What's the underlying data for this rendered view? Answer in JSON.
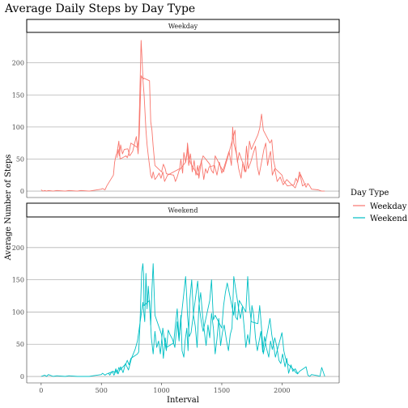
{
  "chart_data": {
    "type": "line",
    "title": "Average Daily Steps by Day Type",
    "xlabel": "Interval",
    "ylabel": "Average Number of Steps",
    "xlim": [
      -120,
      2475
    ],
    "ylim": [
      -10,
      245
    ],
    "x_ticks": [
      0,
      500,
      1000,
      1500,
      2000
    ],
    "y_ticks": [
      0,
      50,
      100,
      150,
      200
    ],
    "grid": true,
    "legend": {
      "title": "Day Type",
      "position": "right",
      "entries": [
        {
          "label": "Weekday",
          "color": "#F8766D"
        },
        {
          "label": "Weekend",
          "color": "#00BFC4"
        }
      ]
    },
    "panels": [
      {
        "strip": "Weekday",
        "series_name": "Weekday",
        "color": "#F8766D",
        "x": [
          0,
          15,
          30,
          45,
          60,
          100,
          130,
          200,
          230,
          300,
          330,
          400,
          430,
          500,
          510,
          530,
          545,
          600,
          610,
          620,
          630,
          645,
          655,
          705,
          715,
          730,
          745,
          800,
          810,
          820,
          830,
          835,
          845,
          850,
          855,
          900,
          910,
          920,
          930,
          945,
          1000,
          1015,
          1030,
          1040,
          1100,
          1115,
          1130,
          1145,
          1200,
          1210,
          1215,
          1230,
          1245,
          1300,
          1315,
          1330,
          1345,
          1400,
          1415,
          1430,
          1445,
          1500,
          1515,
          1530,
          1545,
          1600,
          1610,
          1615,
          1630,
          1645,
          1700,
          1715,
          1730,
          1745,
          1800,
          1815,
          1830,
          1845,
          1900,
          1915,
          1930,
          1945,
          2000,
          2015,
          2030,
          2045,
          2100,
          2115,
          2130,
          2145,
          2200,
          2215,
          2230,
          2245,
          2300,
          2315,
          2330,
          2355
        ],
        "y": [
          2,
          0,
          1,
          0,
          1,
          0,
          1,
          0,
          1,
          0,
          1,
          0,
          1,
          3,
          4,
          2,
          8,
          25,
          45,
          55,
          60,
          78,
          50,
          55,
          52,
          60,
          75,
          68,
          80,
          155,
          235,
          215,
          178,
          175,
          176,
          172,
          108,
          95,
          70,
          40,
          30,
          42,
          35,
          27,
          25,
          15,
          22,
          32,
          45,
          55,
          75,
          50,
          42,
          25,
          38,
          45,
          55,
          42,
          32,
          28,
          55,
          35,
          30,
          40,
          50,
          88,
          95,
          72,
          45,
          60,
          30,
          48,
          78,
          65,
          88,
          98,
          120,
          95,
          75,
          80,
          48,
          35,
          25,
          15,
          12,
          8,
          10,
          20,
          14,
          30,
          6,
          12,
          8,
          3,
          2,
          1,
          0,
          0
        ],
        "overlay": [
          [
            630,
            52
          ],
          [
            640,
            65
          ],
          [
            650,
            55
          ],
          [
            660,
            72
          ],
          [
            675,
            58
          ],
          [
            690,
            65
          ],
          [
            720,
            66
          ],
          [
            735,
            55
          ],
          [
            760,
            62
          ],
          [
            770,
            70
          ],
          [
            790,
            85
          ],
          [
            805,
            58
          ],
          [
            815,
            90
          ],
          [
            830,
            180
          ],
          [
            845,
            175
          ],
          [
            855,
            150
          ],
          [
            870,
            95
          ],
          [
            880,
            72
          ],
          [
            890,
            55
          ],
          [
            900,
            40
          ],
          [
            910,
            25
          ],
          [
            920,
            20
          ],
          [
            930,
            30
          ],
          [
            945,
            18
          ],
          [
            960,
            22
          ],
          [
            980,
            28
          ],
          [
            995,
            20
          ],
          [
            1010,
            30
          ],
          [
            1025,
            15
          ],
          [
            1050,
            25
          ],
          [
            1150,
            35
          ],
          [
            1160,
            50
          ],
          [
            1175,
            28
          ],
          [
            1185,
            60
          ],
          [
            1200,
            45
          ],
          [
            1215,
            68
          ],
          [
            1225,
            40
          ],
          [
            1240,
            58
          ],
          [
            1255,
            30
          ],
          [
            1270,
            48
          ],
          [
            1285,
            25
          ],
          [
            1300,
            40
          ],
          [
            1310,
            20
          ],
          [
            1330,
            48
          ],
          [
            1350,
            18
          ],
          [
            1365,
            35
          ],
          [
            1380,
            28
          ],
          [
            1395,
            38
          ],
          [
            1440,
            40
          ],
          [
            1460,
            25
          ],
          [
            1480,
            45
          ],
          [
            1500,
            28
          ],
          [
            1520,
            38
          ],
          [
            1560,
            62
          ],
          [
            1580,
            40
          ],
          [
            1590,
            100
          ],
          [
            1600,
            75
          ],
          [
            1625,
            55
          ],
          [
            1640,
            35
          ],
          [
            1660,
            20
          ],
          [
            1675,
            45
          ],
          [
            1690,
            30
          ],
          [
            1705,
            70
          ],
          [
            1720,
            35
          ],
          [
            1740,
            45
          ],
          [
            1760,
            58
          ],
          [
            1780,
            70
          ],
          [
            1795,
            38
          ],
          [
            1810,
            25
          ],
          [
            1850,
            65
          ],
          [
            1865,
            75
          ],
          [
            1880,
            40
          ],
          [
            1895,
            55
          ],
          [
            1905,
            62
          ],
          [
            1920,
            25
          ],
          [
            1940,
            35
          ],
          [
            1960,
            15
          ],
          [
            1985,
            22
          ],
          [
            2010,
            10
          ],
          [
            2040,
            18
          ],
          [
            2070,
            12
          ],
          [
            2110,
            5
          ],
          [
            2150,
            26
          ],
          [
            2170,
            8
          ],
          [
            2200,
            12
          ]
        ]
      },
      {
        "strip": "Weekend",
        "series_name": "Weekend",
        "color": "#00BFC4",
        "x": [
          0,
          15,
          30,
          45,
          60,
          100,
          130,
          200,
          230,
          300,
          330,
          400,
          430,
          500,
          510,
          530,
          545,
          600,
          610,
          620,
          630,
          645,
          655,
          705,
          715,
          730,
          745,
          800,
          810,
          820,
          830,
          835,
          845,
          850,
          855,
          900,
          910,
          920,
          930,
          945,
          1000,
          1015,
          1030,
          1040,
          1100,
          1115,
          1130,
          1145,
          1200,
          1210,
          1215,
          1230,
          1245,
          1300,
          1315,
          1330,
          1345,
          1400,
          1415,
          1430,
          1445,
          1500,
          1515,
          1530,
          1545,
          1600,
          1610,
          1615,
          1630,
          1645,
          1700,
          1715,
          1730,
          1745,
          1800,
          1815,
          1830,
          1845,
          1900,
          1915,
          1930,
          1945,
          2000,
          2015,
          2030,
          2045,
          2100,
          2115,
          2130,
          2145,
          2200,
          2215,
          2230,
          2245,
          2300,
          2315,
          2330,
          2355
        ],
        "y": [
          0,
          1,
          2,
          0,
          3,
          0,
          1,
          0,
          1,
          0,
          0,
          0,
          1,
          3,
          5,
          2,
          4,
          8,
          6,
          12,
          5,
          14,
          10,
          20,
          25,
          18,
          28,
          35,
          38,
          78,
          135,
          162,
          175,
          160,
          110,
          118,
          80,
          135,
          175,
          95,
          65,
          28,
          60,
          45,
          52,
          80,
          105,
          60,
          155,
          120,
          95,
          62,
          68,
          148,
          105,
          85,
          70,
          118,
          150,
          88,
          95,
          75,
          110,
          130,
          145,
          95,
          115,
          92,
          88,
          118,
          100,
          155,
          108,
          85,
          82,
          110,
          75,
          35,
          90,
          65,
          48,
          30,
          68,
          40,
          28,
          20,
          10,
          6,
          4,
          8,
          15,
          2,
          0,
          3,
          1,
          0,
          14,
          0
        ],
        "overlay": [
          [
            560,
            5
          ],
          [
            570,
            2
          ],
          [
            590,
            8
          ],
          [
            605,
            2
          ],
          [
            625,
            10
          ],
          [
            640,
            4
          ],
          [
            660,
            15
          ],
          [
            680,
            6
          ],
          [
            700,
            20
          ],
          [
            725,
            10
          ],
          [
            750,
            28
          ],
          [
            780,
            42
          ],
          [
            800,
            55
          ],
          [
            830,
            95
          ],
          [
            845,
            115
          ],
          [
            860,
            85
          ],
          [
            870,
            160
          ],
          [
            880,
            105
          ],
          [
            890,
            140
          ],
          [
            905,
            95
          ],
          [
            915,
            60
          ],
          [
            930,
            35
          ],
          [
            945,
            70
          ],
          [
            960,
            45
          ],
          [
            975,
            55
          ],
          [
            990,
            35
          ],
          [
            1010,
            75
          ],
          [
            1025,
            55
          ],
          [
            1040,
            40
          ],
          [
            1055,
            72
          ],
          [
            1070,
            65
          ],
          [
            1090,
            58
          ],
          [
            1110,
            45
          ],
          [
            1130,
            85
          ],
          [
            1145,
            55
          ],
          [
            1160,
            95
          ],
          [
            1170,
            40
          ],
          [
            1185,
            30
          ],
          [
            1195,
            55
          ],
          [
            1210,
            75
          ],
          [
            1220,
            40
          ],
          [
            1235,
            120
          ],
          [
            1250,
            150
          ],
          [
            1265,
            95
          ],
          [
            1280,
            78
          ],
          [
            1295,
            45
          ],
          [
            1310,
            110
          ],
          [
            1325,
            130
          ],
          [
            1340,
            95
          ],
          [
            1355,
            70
          ],
          [
            1370,
            48
          ],
          [
            1385,
            80
          ],
          [
            1400,
            60
          ],
          [
            1415,
            98
          ],
          [
            1430,
            75
          ],
          [
            1445,
            35
          ],
          [
            1460,
            58
          ],
          [
            1475,
            90
          ],
          [
            1490,
            48
          ],
          [
            1505,
            68
          ],
          [
            1520,
            80
          ],
          [
            1540,
            55
          ],
          [
            1555,
            40
          ],
          [
            1570,
            65
          ],
          [
            1585,
            75
          ],
          [
            1600,
            155
          ],
          [
            1620,
            130
          ],
          [
            1640,
            105
          ],
          [
            1655,
            90
          ],
          [
            1670,
            108
          ],
          [
            1685,
            78
          ],
          [
            1700,
            45
          ],
          [
            1715,
            65
          ],
          [
            1730,
            50
          ],
          [
            1750,
            110
          ],
          [
            1765,
            95
          ],
          [
            1780,
            60
          ],
          [
            1795,
            40
          ],
          [
            1810,
            55
          ],
          [
            1825,
            70
          ],
          [
            1840,
            38
          ],
          [
            1855,
            62
          ],
          [
            1870,
            45
          ],
          [
            1890,
            30
          ],
          [
            1905,
            55
          ],
          [
            1920,
            42
          ],
          [
            1940,
            60
          ],
          [
            1955,
            48
          ],
          [
            1975,
            25
          ],
          [
            1990,
            20
          ],
          [
            2005,
            35
          ],
          [
            2025,
            15
          ],
          [
            2040,
            28
          ],
          [
            2055,
            5
          ],
          [
            2075,
            18
          ],
          [
            2090,
            8
          ],
          [
            2110,
            12
          ],
          [
            2130,
            5
          ]
        ]
      }
    ]
  }
}
